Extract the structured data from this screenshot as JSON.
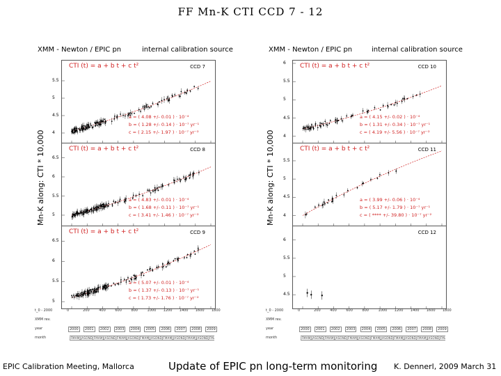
{
  "slide": {
    "title": "FF  Mn-K  CTI  CCD 7 - 12",
    "footer_left": "EPIC Calibration Meeting, Mallorca",
    "footer_center": "Update of EPIC pn long-term monitoring",
    "footer_right": "K. Dennerl, 2009 March 31"
  },
  "panels": [
    {
      "header_left": "XMM - Newton  /  EPIC pn",
      "header_right": "internal calibration source",
      "ylabel": "Mn-K  along:  CTI * 10,000"
    },
    {
      "header_left": "XMM - Newton  /  EPIC pn",
      "header_right": "internal calibration source",
      "ylabel": "Mn-K  along:  CTI * 10,000"
    }
  ],
  "colors": {
    "fit": "#d02020",
    "points": "#000000",
    "frame": "#555555"
  },
  "chart_data": [
    {
      "type": "scatter",
      "ccd": "CCD 7",
      "formula": "CTI (t) = a + b t + c t²",
      "fit_lines": [
        "a = ( 4.08 +/- 0.01 ) · 10⁻⁴",
        "b = ( 1.28 +/- 0.14 ) · 10⁻⁷ yr⁻¹",
        "c = ( 2.15 +/- 1.97 ) · 10⁻⁷ yr⁻²"
      ],
      "yticks": [
        "4",
        "4.5",
        "5",
        "5.5"
      ],
      "ylim": [
        3.8,
        6
      ],
      "fit": {
        "a": 4.05,
        "b": 0.00062,
        "c": 1e-07
      },
      "seed": 7
    },
    {
      "type": "scatter",
      "ccd": "CCD 8",
      "formula": "CTI (t) = a + b t + c t²",
      "fit_lines": [
        "a = ( 4.83 +/- 0.01 ) · 10⁻⁴",
        "b = ( 1.68 +/- 0.11 ) · 10⁻⁷ yr⁻¹",
        "c = ( 3.41 +/- 1.46 ) · 10⁻⁷ yr⁻²"
      ],
      "yticks": [
        "5",
        "5.5",
        "6",
        "6.5"
      ],
      "ylim": [
        4.8,
        6.8
      ],
      "fit": {
        "a": 5.0,
        "b": 0.00052,
        "c": 1e-07
      },
      "seed": 8
    },
    {
      "type": "scatter",
      "ccd": "CCD 9",
      "formula": "CTI (t) = a + b t + c t²",
      "fit_lines": [
        "a = ( 5.07 +/- 0.01 ) · 10⁻⁴",
        "b = ( 1.37 +/- 0.13 ) · 10⁻⁷ yr⁻¹",
        "c = ( 1.73 +/- 1.76 ) · 10⁻⁷ yr⁻²"
      ],
      "yticks": [
        "5",
        "5.5",
        "6",
        "6.5"
      ],
      "ylim": [
        4.9,
        6.8
      ],
      "fit": {
        "a": 5.1,
        "b": 0.00055,
        "c": 1e-07
      },
      "seed": 9
    },
    {
      "type": "scatter",
      "ccd": "CCD 10",
      "formula": "CTI (t) = a + b t + c t²",
      "fit_lines": [
        "a = ( 4.15 +/- 0.02 ) · 10⁻⁴",
        "b = ( 1.31 +/- 0.34 ) · 10⁻⁷ yr⁻¹",
        "c = ( 4.19 +/- 5.56 ) · 10⁻⁷ yr⁻²"
      ],
      "yticks": [
        "4",
        "4.5",
        "5",
        "5.5",
        "6"
      ],
      "ylim": [
        3.9,
        6
      ],
      "fit": {
        "a": 4.2,
        "b": 0.00048,
        "c": 1e-07
      },
      "seed": 10
    },
    {
      "type": "scatter",
      "ccd": "CCD 11",
      "formula": "CTI (t) = a + b t + c t²",
      "fit_lines": [
        "a = ( 3.99 +/- 0.06 ) · 10⁻⁴",
        "b = ( 5.17 +/- 1.79 ) · 10⁻⁷ yr⁻¹",
        "c = ( **** +/- 39.80 ) · 10⁻⁷ yr⁻²"
      ],
      "yticks": [
        "4",
        "4.5",
        "5",
        "5.5"
      ],
      "ylim": [
        3.8,
        5.9
      ],
      "fit": {
        "a": 4.0,
        "b": 0.0012,
        "c": -1.2e-07
      },
      "seed": 11
    },
    {
      "type": "scatter",
      "ccd": "CCD 12",
      "formula": "",
      "fit_lines": [],
      "yticks": [
        "4.5",
        "5",
        "5.5",
        "6"
      ],
      "ylim": [
        4.2,
        6.3
      ],
      "fit": null,
      "seed": 12,
      "points": [
        [
          60,
          4.55
        ],
        [
          110,
          4.5
        ],
        [
          250,
          4.48
        ]
      ]
    }
  ],
  "x_axis": {
    "day_ticks": [
      "0",
      "200",
      "400",
      "600",
      "800",
      "1000",
      "1200",
      "1400",
      "1600",
      "1800"
    ],
    "years": [
      "2000",
      "2001",
      "2002",
      "2003",
      "2004",
      "2005",
      "2006",
      "2007",
      "2008",
      "2009"
    ],
    "row_labels": [
      "t_0 - 2000",
      "XMM rev.",
      "year",
      "month"
    ],
    "month_row": "J F M A M J J A S O N D J F M A M J J A S O N D J F M A M J J A S O N D J F M A M J J A S O N D J F M A M J J A S O N D J F M A M J J A S O N D J F M A M J J A S O N D"
  }
}
